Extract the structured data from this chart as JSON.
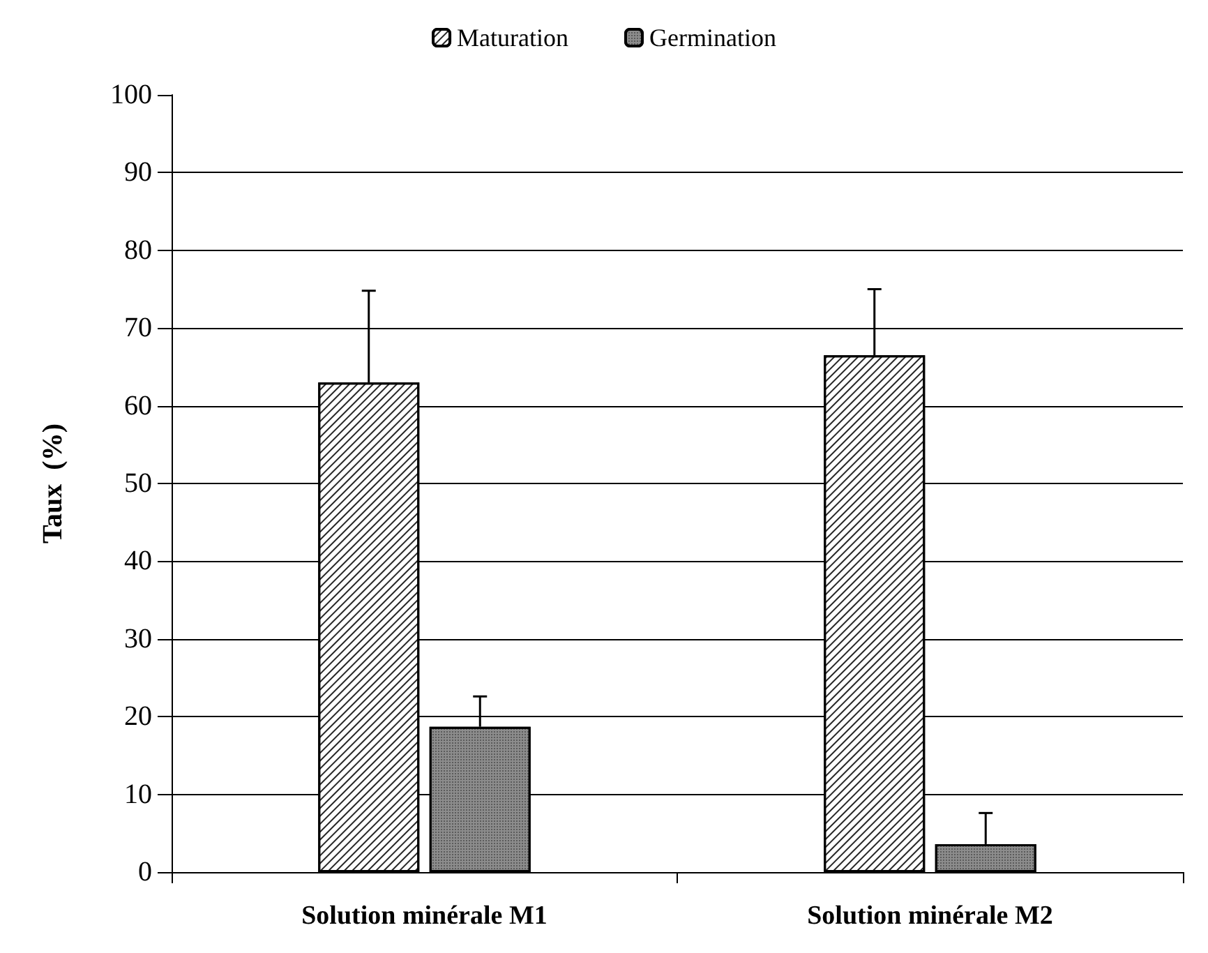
{
  "chart_data": {
    "type": "bar",
    "ylabel": "Taux  (%)",
    "categories": [
      "Solution minérale M1",
      "Solution minérale M2"
    ],
    "series": [
      {
        "name": "Maturation",
        "color": "#ffffff",
        "values": [
          63,
          66.5
        ],
        "errors": [
          [
            63,
            74.8
          ],
          [
            66.5,
            75
          ]
        ]
      },
      {
        "name": "Germination",
        "color": "#8c8c8c",
        "values": [
          18.7,
          3.6
        ],
        "errors": [
          [
            18.7,
            22.6
          ],
          [
            3.6,
            7.6
          ]
        ]
      }
    ],
    "ylim": [
      0,
      100
    ],
    "yticks": [
      0,
      10,
      20,
      30,
      40,
      50,
      60,
      70,
      80,
      90,
      100
    ],
    "grid": "y",
    "legend": "top"
  }
}
